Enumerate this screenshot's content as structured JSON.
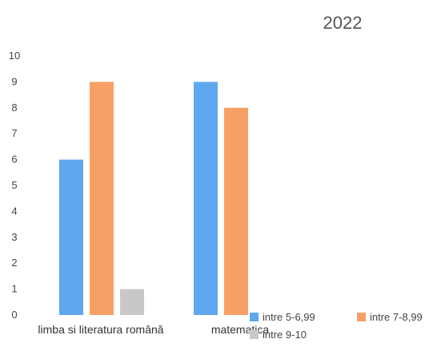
{
  "chart_data": {
    "type": "bar",
    "title": "2022",
    "categories": [
      "limba si literatura română",
      "matematica"
    ],
    "series": [
      {
        "name": "intre 5-6,99",
        "values": [
          6,
          9
        ],
        "color": "#5fa8f0"
      },
      {
        "name": "intre 7-8,99",
        "values": [
          9,
          8
        ],
        "color": "#f7a065"
      },
      {
        "name": "intre 9-10",
        "values": [
          1,
          0
        ],
        "color": "#c8c8c8"
      }
    ],
    "ylim": [
      0,
      10
    ],
    "yticks": [
      0,
      1,
      2,
      3,
      4,
      5,
      6,
      7,
      8,
      9,
      10
    ],
    "xlabel": "",
    "ylabel": "",
    "grid": false,
    "legend_position": "bottom-right"
  }
}
